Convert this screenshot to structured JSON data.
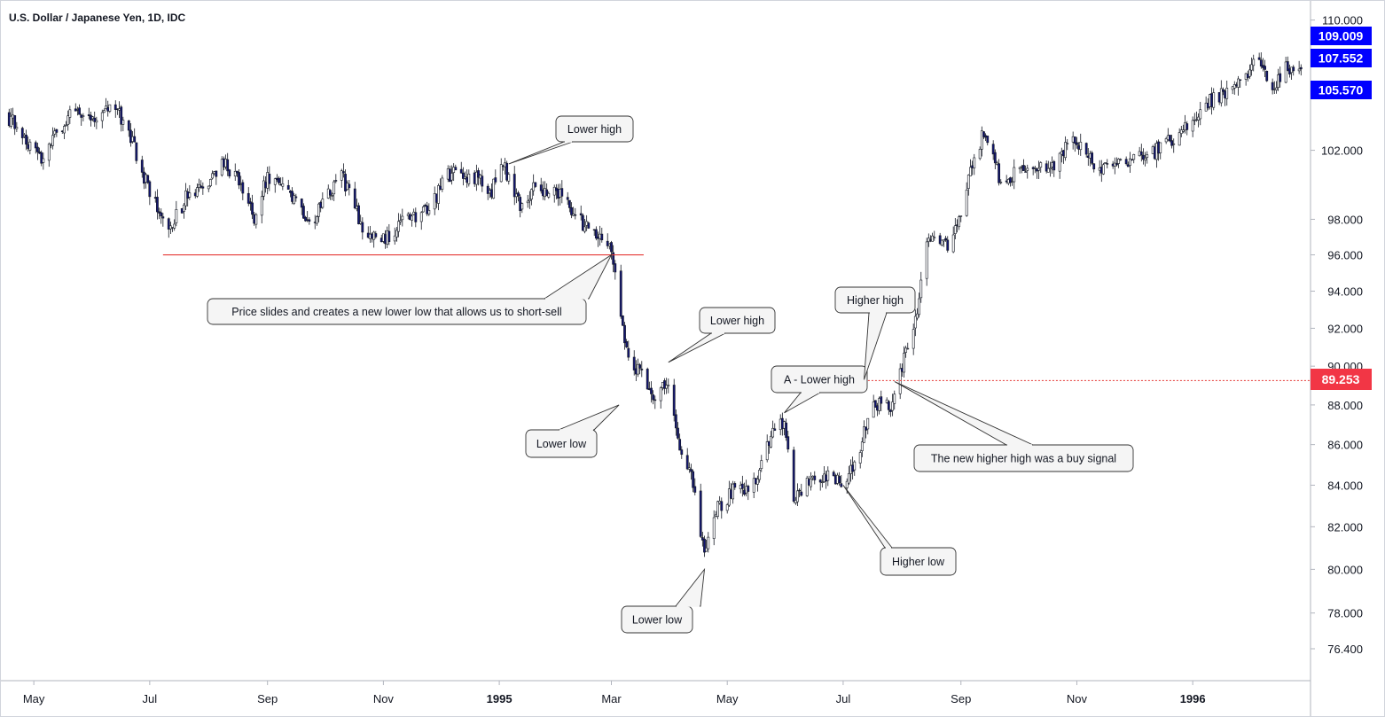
{
  "chart_data": {
    "type": "candlestick",
    "title": "U.S. Dollar / Japanese Yen, 1D, IDC",
    "xlabel": "",
    "ylabel": "",
    "y_scale": "log",
    "ylim": [
      75.0,
      111.0
    ],
    "x_range": [
      "1994-04-16",
      "1996-03-03"
    ],
    "grid": false,
    "x_ticks": [
      {
        "date": "1994-05-01",
        "label": "May"
      },
      {
        "date": "1994-07-01",
        "label": "Jul"
      },
      {
        "date": "1994-09-01",
        "label": "Sep"
      },
      {
        "date": "1994-11-01",
        "label": "Nov"
      },
      {
        "date": "1995-01-01",
        "label": "1995"
      },
      {
        "date": "1995-03-01",
        "label": "Mar"
      },
      {
        "date": "1995-05-01",
        "label": "May"
      },
      {
        "date": "1995-07-01",
        "label": "Jul"
      },
      {
        "date": "1995-09-01",
        "label": "Sep"
      },
      {
        "date": "1995-11-01",
        "label": "Nov"
      },
      {
        "date": "1996-01-01",
        "label": "1996"
      }
    ],
    "y_ticks": [
      {
        "value": 110.0,
        "label": "110.000"
      },
      {
        "value": 102.0,
        "label": "102.000"
      },
      {
        "value": 98.0,
        "label": "98.000"
      },
      {
        "value": 96.0,
        "label": "96.000"
      },
      {
        "value": 94.0,
        "label": "94.000"
      },
      {
        "value": 92.0,
        "label": "92.000"
      },
      {
        "value": 90.0,
        "label": "90.000"
      },
      {
        "value": 88.0,
        "label": "88.000"
      },
      {
        "value": 86.0,
        "label": "86.000"
      },
      {
        "value": 84.0,
        "label": "84.000"
      },
      {
        "value": 82.0,
        "label": "82.000"
      },
      {
        "value": 80.0,
        "label": "80.000"
      },
      {
        "value": 78.0,
        "label": "78.000"
      },
      {
        "value": 76.4,
        "label": "76.400"
      }
    ],
    "price_anchors": [
      {
        "date": "1994-04-16",
        "price": 104.2
      },
      {
        "date": "1994-04-25",
        "price": 103.0
      },
      {
        "date": "1994-05-05",
        "price": 101.5
      },
      {
        "date": "1994-05-20",
        "price": 104.3
      },
      {
        "date": "1994-06-05",
        "price": 104.0
      },
      {
        "date": "1994-06-12",
        "price": 104.7
      },
      {
        "date": "1994-06-20",
        "price": 103.0
      },
      {
        "date": "1994-06-28",
        "price": 100.5
      },
      {
        "date": "1994-07-03",
        "price": 99.0
      },
      {
        "date": "1994-07-12",
        "price": 97.5
      },
      {
        "date": "1994-07-20",
        "price": 99.2
      },
      {
        "date": "1994-08-01",
        "price": 99.8
      },
      {
        "date": "1994-08-08",
        "price": 101.5
      },
      {
        "date": "1994-08-15",
        "price": 100.5
      },
      {
        "date": "1994-08-25",
        "price": 98.2
      },
      {
        "date": "1994-09-01",
        "price": 100.5
      },
      {
        "date": "1994-09-15",
        "price": 99.0
      },
      {
        "date": "1994-09-25",
        "price": 97.9
      },
      {
        "date": "1994-10-10",
        "price": 100.6
      },
      {
        "date": "1994-10-22",
        "price": 97.2
      },
      {
        "date": "1994-11-01",
        "price": 96.8
      },
      {
        "date": "1994-11-10",
        "price": 97.8
      },
      {
        "date": "1994-11-25",
        "price": 98.5
      },
      {
        "date": "1994-12-05",
        "price": 100.6
      },
      {
        "date": "1994-12-20",
        "price": 100.4
      },
      {
        "date": "1994-12-28",
        "price": 99.7
      },
      {
        "date": "1995-01-03",
        "price": 101.1
      },
      {
        "date": "1995-01-12",
        "price": 98.8
      },
      {
        "date": "1995-01-20",
        "price": 99.8
      },
      {
        "date": "1995-02-01",
        "price": 99.6
      },
      {
        "date": "1995-02-15",
        "price": 97.5
      },
      {
        "date": "1995-02-27",
        "price": 96.8
      },
      {
        "date": "1995-03-02",
        "price": 95.8
      },
      {
        "date": "1995-03-06",
        "price": 93.0
      },
      {
        "date": "1995-03-10",
        "price": 90.2
      },
      {
        "date": "1995-03-17",
        "price": 89.8
      },
      {
        "date": "1995-03-23",
        "price": 88.5
      },
      {
        "date": "1995-03-31",
        "price": 89.2
      },
      {
        "date": "1995-04-05",
        "price": 86.2
      },
      {
        "date": "1995-04-12",
        "price": 84.3
      },
      {
        "date": "1995-04-19",
        "price": 80.8
      },
      {
        "date": "1995-04-25",
        "price": 82.8
      },
      {
        "date": "1995-05-05",
        "price": 83.8
      },
      {
        "date": "1995-05-15",
        "price": 84.0
      },
      {
        "date": "1995-05-25",
        "price": 86.8
      },
      {
        "date": "1995-05-31",
        "price": 87.1
      },
      {
        "date": "1995-06-05",
        "price": 83.2
      },
      {
        "date": "1995-06-15",
        "price": 84.5
      },
      {
        "date": "1995-06-30",
        "price": 84.3
      },
      {
        "date": "1995-07-08",
        "price": 85.0
      },
      {
        "date": "1995-07-14",
        "price": 87.5
      },
      {
        "date": "1995-07-20",
        "price": 88.1
      },
      {
        "date": "1995-07-27",
        "price": 87.9
      },
      {
        "date": "1995-08-02",
        "price": 90.5
      },
      {
        "date": "1995-08-08",
        "price": 92.5
      },
      {
        "date": "1995-08-15",
        "price": 97.0
      },
      {
        "date": "1995-08-25",
        "price": 96.5
      },
      {
        "date": "1995-09-01",
        "price": 98.0
      },
      {
        "date": "1995-09-08",
        "price": 101.8
      },
      {
        "date": "1995-09-14",
        "price": 103.2
      },
      {
        "date": "1995-09-22",
        "price": 100.0
      },
      {
        "date": "1995-10-05",
        "price": 101.0
      },
      {
        "date": "1995-10-18",
        "price": 100.8
      },
      {
        "date": "1995-10-30",
        "price": 103.0
      },
      {
        "date": "1995-11-10",
        "price": 101.0
      },
      {
        "date": "1995-11-25",
        "price": 101.4
      },
      {
        "date": "1995-12-10",
        "price": 101.8
      },
      {
        "date": "1995-12-25",
        "price": 103.0
      },
      {
        "date": "1996-01-10",
        "price": 104.9
      },
      {
        "date": "1996-01-25",
        "price": 106.0
      },
      {
        "date": "1996-02-05",
        "price": 107.5
      },
      {
        "date": "1996-02-12",
        "price": 105.5
      },
      {
        "date": "1996-02-19",
        "price": 107.2
      },
      {
        "date": "1996-02-27",
        "price": 106.5
      }
    ],
    "price_badges": [
      {
        "value": 109.009,
        "label": "109.009",
        "color": "#0000ff"
      },
      {
        "value": 107.552,
        "label": "107.552",
        "color": "#0000ff"
      },
      {
        "value": 105.57,
        "label": "105.570",
        "color": "#0000ff"
      },
      {
        "value": 89.253,
        "label": "89.253",
        "color": "#f23645"
      }
    ],
    "horizontal_lines": [
      {
        "value": 96.0,
        "start": "1994-07-08",
        "end": "1995-03-18",
        "style": "solid",
        "color": "#e53935"
      },
      {
        "value": 89.253,
        "start": "1995-07-01",
        "end": "1996-03-03",
        "style": "dotted",
        "color": "#e53935"
      }
    ],
    "annotations": [
      {
        "text": "Lower high",
        "target_date": "1995-01-06",
        "target_price": 101.2
      },
      {
        "text": "Price slides and creates a new lower low that allows us to short-sell",
        "target_date": "1995-03-01",
        "target_price": 96.0
      },
      {
        "text": "Lower high",
        "target_date": "1995-03-31",
        "target_price": 90.2
      },
      {
        "text": "Lower low",
        "target_date": "1995-03-05",
        "target_price": 88.0
      },
      {
        "text": "A - Lower high",
        "target_date": "1995-05-31",
        "target_price": 87.6
      },
      {
        "text": "Higher high",
        "target_date": "1995-07-12",
        "target_price": 89.3
      },
      {
        "text": "The new higher high was a buy signal",
        "target_date": "1995-07-28",
        "target_price": 89.2
      },
      {
        "text": "Higher low",
        "target_date": "1995-07-01",
        "target_price": 84.0
      },
      {
        "text": "Lower low",
        "target_date": "1995-04-19",
        "target_price": 80.0
      }
    ],
    "colors": {
      "bull_body": "#ffffff",
      "bear_body": "#131670",
      "wick": "#131722",
      "axis_line": "#b2b5be"
    }
  }
}
